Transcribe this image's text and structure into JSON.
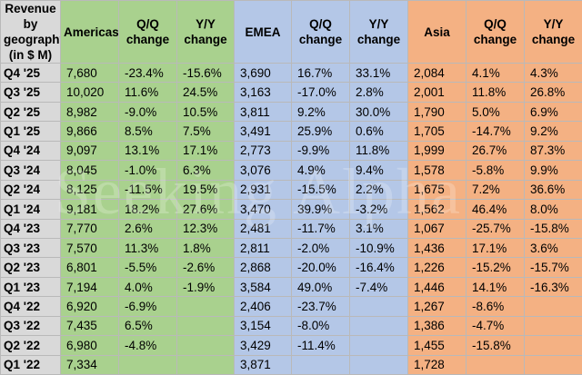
{
  "header": {
    "label": "Revenue by geography (in $ M)",
    "americas": "Americas",
    "emea": "EMEA",
    "asia": "Asia",
    "qq": "Q/Q change",
    "yy": "Y/Y change"
  },
  "watermark": "Seeking Alpha",
  "colors": {
    "label_bg": "#d9d9d9",
    "americas_bg": "#a9d18e",
    "emea_bg": "#b4c7e7",
    "asia_bg": "#f4b183"
  },
  "rows": [
    {
      "q": "Q4 '25",
      "am": "7,680",
      "am_qq": "-23.4%",
      "am_yy": "-15.6%",
      "em": "3,690",
      "em_qq": "16.7%",
      "em_yy": "33.1%",
      "as": "2,084",
      "as_qq": "4.1%",
      "as_yy": "4.3%"
    },
    {
      "q": "Q3 '25",
      "am": "10,020",
      "am_qq": "11.6%",
      "am_yy": "24.5%",
      "em": "3,163",
      "em_qq": "-17.0%",
      "em_yy": "2.8%",
      "as": "2,001",
      "as_qq": "11.8%",
      "as_yy": "26.8%"
    },
    {
      "q": "Q2 '25",
      "am": "8,982",
      "am_qq": "-9.0%",
      "am_yy": "10.5%",
      "em": "3,811",
      "em_qq": "9.2%",
      "em_yy": "30.0%",
      "as": "1,790",
      "as_qq": "5.0%",
      "as_yy": "6.9%"
    },
    {
      "q": "Q1 '25",
      "am": "9,866",
      "am_qq": "8.5%",
      "am_yy": "7.5%",
      "em": "3,491",
      "em_qq": "25.9%",
      "em_yy": "0.6%",
      "as": "1,705",
      "as_qq": "-14.7%",
      "as_yy": "9.2%"
    },
    {
      "q": "Q4 '24",
      "am": "9,097",
      "am_qq": "13.1%",
      "am_yy": "17.1%",
      "em": "2,773",
      "em_qq": "-9.9%",
      "em_yy": "11.8%",
      "as": "1,999",
      "as_qq": "26.7%",
      "as_yy": "87.3%"
    },
    {
      "q": "Q3 '24",
      "am": "8,045",
      "am_qq": "-1.0%",
      "am_yy": "6.3%",
      "em": "3,076",
      "em_qq": "4.9%",
      "em_yy": "9.4%",
      "as": "1,578",
      "as_qq": "-5.8%",
      "as_yy": "9.9%"
    },
    {
      "q": "Q2 '24",
      "am": "8,125",
      "am_qq": "-11.5%",
      "am_yy": "19.5%",
      "em": "2,931",
      "em_qq": "-15.5%",
      "em_yy": "2.2%",
      "as": "1,675",
      "as_qq": "7.2%",
      "as_yy": "36.6%"
    },
    {
      "q": "Q1 '24",
      "am": "9,181",
      "am_qq": "18.2%",
      "am_yy": "27.6%",
      "em": "3,470",
      "em_qq": "39.9%",
      "em_yy": "-3.2%",
      "as": "1,562",
      "as_qq": "46.4%",
      "as_yy": "8.0%"
    },
    {
      "q": "Q4 '23",
      "am": "7,770",
      "am_qq": "2.6%",
      "am_yy": "12.3%",
      "em": "2,481",
      "em_qq": "-11.7%",
      "em_yy": "3.1%",
      "as": "1,067",
      "as_qq": "-25.7%",
      "as_yy": "-15.8%"
    },
    {
      "q": "Q3 '23",
      "am": "7,570",
      "am_qq": "11.3%",
      "am_yy": "1.8%",
      "em": "2,811",
      "em_qq": "-2.0%",
      "em_yy": "-10.9%",
      "as": "1,436",
      "as_qq": "17.1%",
      "as_yy": "3.6%"
    },
    {
      "q": "Q2 '23",
      "am": "6,801",
      "am_qq": "-5.5%",
      "am_yy": "-2.6%",
      "em": "2,868",
      "em_qq": "-20.0%",
      "em_yy": "-16.4%",
      "as": "1,226",
      "as_qq": "-15.2%",
      "as_yy": "-15.7%"
    },
    {
      "q": "Q1 '23",
      "am": "7,194",
      "am_qq": "4.0%",
      "am_yy": "-1.9%",
      "em": "3,584",
      "em_qq": "49.0%",
      "em_yy": "-7.4%",
      "as": "1,446",
      "as_qq": "14.1%",
      "as_yy": "-16.3%"
    },
    {
      "q": "Q4 '22",
      "am": "6,920",
      "am_qq": "-6.9%",
      "am_yy": "",
      "em": "2,406",
      "em_qq": "-23.7%",
      "em_yy": "",
      "as": "1,267",
      "as_qq": "-8.6%",
      "as_yy": ""
    },
    {
      "q": "Q3 '22",
      "am": "7,435",
      "am_qq": "6.5%",
      "am_yy": "",
      "em": "3,154",
      "em_qq": "-8.0%",
      "em_yy": "",
      "as": "1,386",
      "as_qq": "-4.7%",
      "as_yy": ""
    },
    {
      "q": "Q2 '22",
      "am": "6,980",
      "am_qq": "-4.8%",
      "am_yy": "",
      "em": "3,429",
      "em_qq": "-11.4%",
      "em_yy": "",
      "as": "1,455",
      "as_qq": "-15.8%",
      "as_yy": ""
    },
    {
      "q": "Q1 '22",
      "am": "7,334",
      "am_qq": "",
      "am_yy": "",
      "em": "3,871",
      "em_qq": "",
      "em_yy": "",
      "as": "1,728",
      "as_qq": "",
      "as_yy": ""
    }
  ]
}
